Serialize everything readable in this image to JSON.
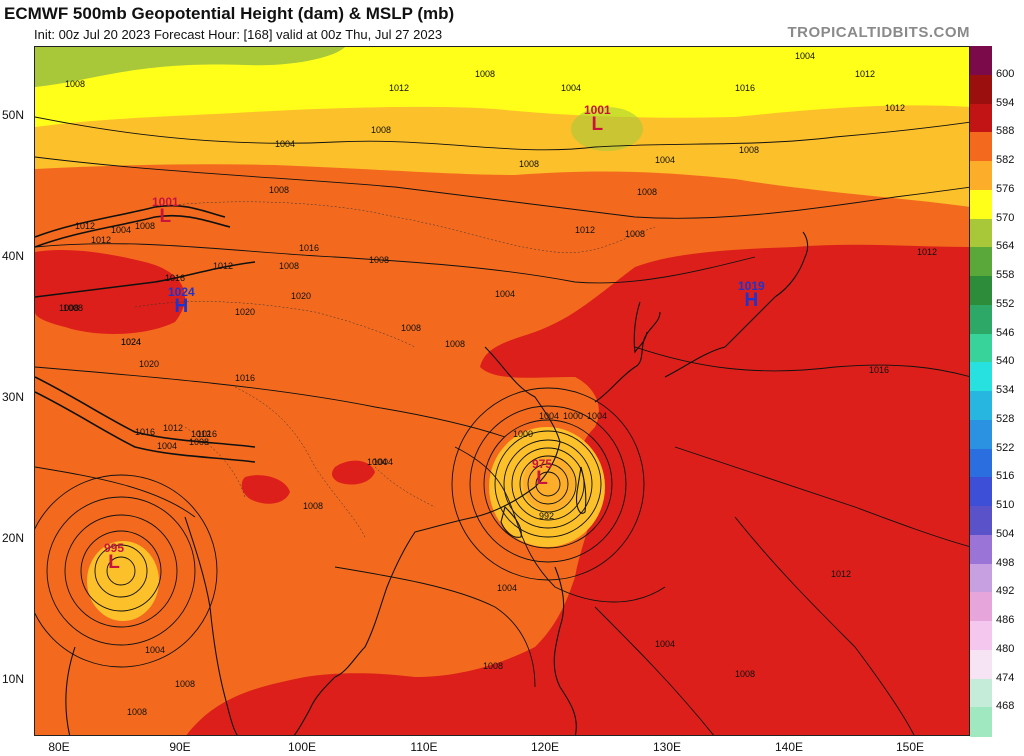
{
  "header": {
    "title": "ECMWF 500mb Geopotential Height (dam) & MSLP (mb)",
    "subtitle": "Init: 00z Jul 20 2023   Forecast Hour: [168]   valid at 00z Thu, Jul 27 2023",
    "brand": "TROPICALTIDBITS.COM"
  },
  "axes": {
    "lat_labels": [
      "50N",
      "40N",
      "30N",
      "20N",
      "10N"
    ],
    "lon_labels": [
      "80E",
      "90E",
      "100E",
      "110E",
      "120E",
      "130E",
      "140E",
      "150E"
    ]
  },
  "colorbar": {
    "labels": [
      "600",
      "594",
      "588",
      "582",
      "576",
      "570",
      "564",
      "558",
      "552",
      "546",
      "540",
      "534",
      "528",
      "522",
      "516",
      "510",
      "504",
      "498",
      "492",
      "486",
      "480",
      "474",
      "468"
    ],
    "colors": [
      "#7a0a4a",
      "#9b0f0f",
      "#c21414",
      "#f36a1f",
      "#fcae2a",
      "#ffff1a",
      "#a8c83a",
      "#5aa83a",
      "#2c8c3a",
      "#2ea866",
      "#38d39a",
      "#27e0e0",
      "#27b6e0",
      "#2a92e0",
      "#2a6ee0",
      "#3d4fd6",
      "#5a52c8",
      "#9a74d6",
      "#c6a0e0",
      "#e6a6dc",
      "#f4c8ee",
      "#f6e4f4",
      "#c4ecd8",
      "#a0e8c0"
    ]
  },
  "systems": [
    {
      "type": "L",
      "value": "1001",
      "color": "#c8143c"
    },
    {
      "type": "L",
      "value": "1001",
      "color": "#c8143c"
    },
    {
      "type": "H",
      "value": "1019",
      "color": "#2033cc"
    },
    {
      "type": "H",
      "value": "1024",
      "color": "#2033cc"
    },
    {
      "type": "L",
      "value": "975",
      "color": "#c8143c"
    },
    {
      "type": "L",
      "value": "995",
      "color": "#c8143c"
    }
  ],
  "isobar_labels": [
    "1004",
    "1012",
    "1008",
    "1008",
    "1012",
    "1004",
    "1008",
    "1008",
    "1016",
    "1012",
    "1008",
    "1020",
    "1024",
    "1008",
    "1020",
    "1016",
    "1024",
    "1020",
    "1016",
    "1008",
    "1008",
    "1004",
    "1016",
    "1012",
    "1008",
    "1004",
    "1004",
    "1000",
    "992",
    "1008",
    "1008",
    "1012",
    "1016",
    "1012",
    "1012",
    "1004",
    "1008",
    "1008",
    "1012",
    "1016",
    "1012",
    "1008",
    "1004",
    "1004",
    "1004",
    "1008",
    "1008",
    "1000",
    "1004",
    "1012",
    "1008",
    "1016",
    "1004",
    "1012",
    "1004",
    "1008",
    "1008",
    "1004",
    "1008",
    "1008",
    "1004"
  ]
}
